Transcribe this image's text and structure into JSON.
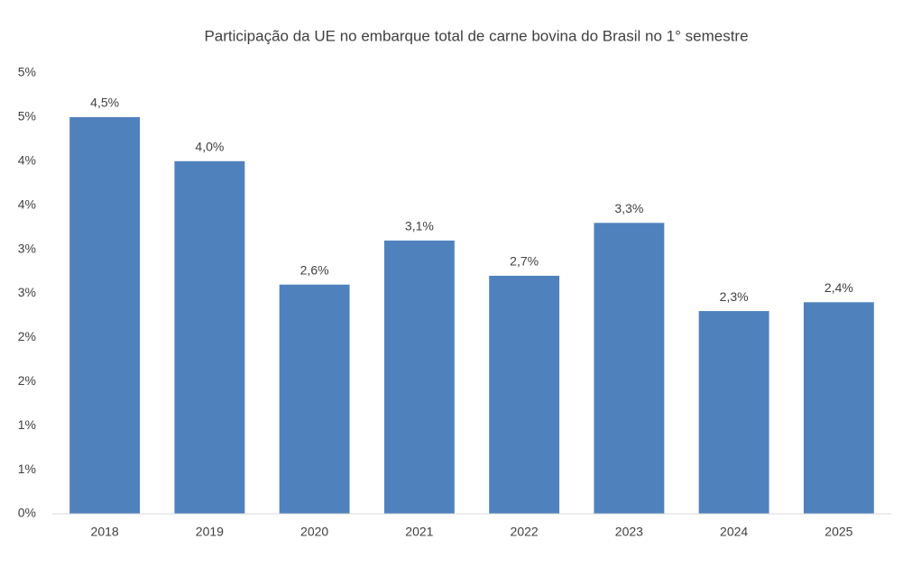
{
  "chart_data": {
    "type": "bar",
    "title": "Participação da UE no embarque total de carne bovina do Brasil no 1° semestre",
    "categories": [
      "2018",
      "2019",
      "2020",
      "2021",
      "2022",
      "2023",
      "2024",
      "2025"
    ],
    "values": [
      4.5,
      4.0,
      2.6,
      3.1,
      2.7,
      3.3,
      2.3,
      2.4
    ],
    "value_labels": [
      "4,5%",
      "4,0%",
      "2,6%",
      "3,1%",
      "2,7%",
      "3,3%",
      "2,3%",
      "2,4%"
    ],
    "color": "#4f81bd",
    "ylim": [
      0,
      5
    ],
    "yticks": [
      {
        "value": 0,
        "label": "0%"
      },
      {
        "value": 0.5,
        "label": "1%"
      },
      {
        "value": 1,
        "label": "1%"
      },
      {
        "value": 1.5,
        "label": "2%"
      },
      {
        "value": 2,
        "label": "2%"
      },
      {
        "value": 2.5,
        "label": "3%"
      },
      {
        "value": 3,
        "label": "3%"
      },
      {
        "value": 3.5,
        "label": "4%"
      },
      {
        "value": 4,
        "label": "4%"
      },
      {
        "value": 4.5,
        "label": "5%"
      },
      {
        "value": 5,
        "label": "5%"
      }
    ],
    "grid": false
  }
}
